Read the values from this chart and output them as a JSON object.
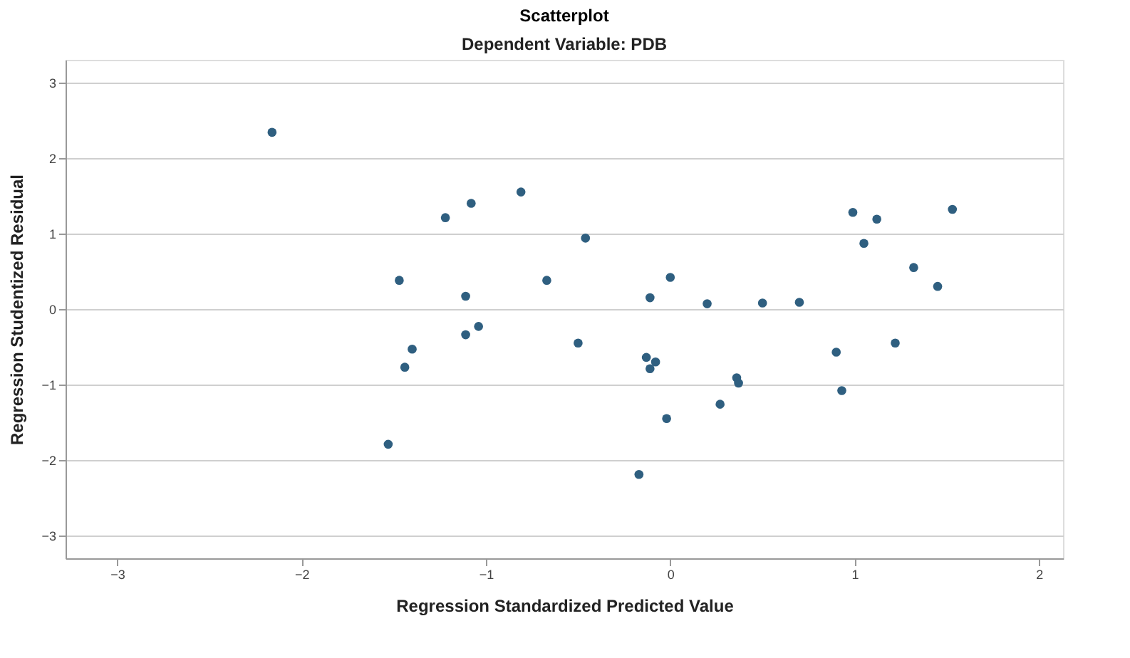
{
  "chart_data": {
    "type": "scatter",
    "title": "Scatterplot",
    "subtitle": "Dependent Variable: PDB",
    "xlabel": "Regression Standardized Predicted Value",
    "ylabel": "Regression Studentized Residual",
    "x": [
      -2.16,
      -1.53,
      -1.47,
      -1.44,
      -1.4,
      -1.22,
      -1.11,
      -1.11,
      -1.08,
      -1.04,
      -0.81,
      -0.67,
      -0.5,
      -0.46,
      -0.11,
      -0.13,
      -0.08,
      -0.11,
      -0.02,
      0.0,
      -0.17,
      0.2,
      0.27,
      0.36,
      0.37,
      0.5,
      0.7,
      0.9,
      0.93,
      0.99,
      1.05,
      1.12,
      1.22,
      1.32,
      1.45,
      1.53
    ],
    "series": [
      {
        "color": "#2f5f80",
        "values": [
          2.34,
          -1.79,
          0.38,
          -0.77,
          -0.53,
          1.21,
          0.17,
          -0.34,
          1.4,
          -0.23,
          1.55,
          0.38,
          -0.45,
          0.94,
          0.15,
          -0.64,
          -0.7,
          -0.79,
          -1.45,
          0.42,
          -2.19,
          0.07,
          -1.26,
          -0.91,
          -0.98,
          0.08,
          0.09,
          -0.57,
          -1.08,
          1.28,
          0.87,
          1.19,
          -0.45,
          0.55,
          0.3,
          1.32
        ]
      }
    ],
    "xlim": [
      -3.28,
      2.13
    ],
    "ylim": [
      -3.3,
      3.3
    ],
    "xticks": [
      -3,
      -2,
      -1,
      0,
      1,
      2
    ],
    "yticks": [
      -3,
      -2,
      -1,
      0,
      1,
      2,
      3
    ],
    "grid": "y",
    "marker": "circle",
    "legend": false
  }
}
